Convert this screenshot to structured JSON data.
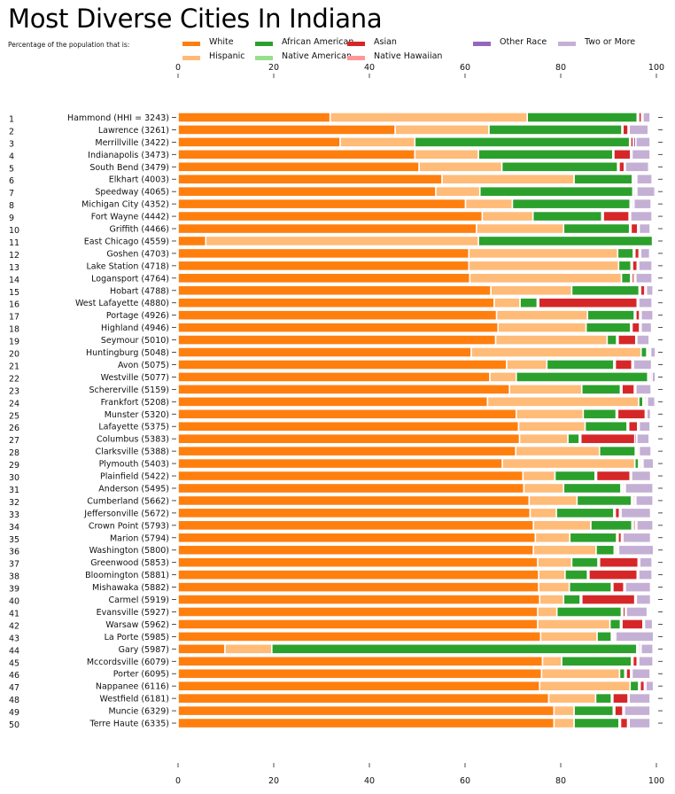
{
  "chart_data": {
    "type": "bar",
    "orientation": "horizontal-stacked",
    "title": "Most Diverse Cities In Indiana",
    "subtitle": "Percentage of the population that is:",
    "xlabel": "",
    "ylabel": "",
    "xlim": [
      0,
      100
    ],
    "xticks": [
      "0",
      "20",
      "40",
      "60",
      "80",
      "100"
    ],
    "xtick_values": [
      0,
      20,
      40,
      60,
      80,
      100
    ],
    "grid": false,
    "legend_position": "top",
    "series": [
      {
        "name": "White",
        "color": "#ff7f0e"
      },
      {
        "name": "Hispanic",
        "color": "#ffbb78"
      },
      {
        "name": "African American",
        "color": "#2ca02c"
      },
      {
        "name": "Native American",
        "color": "#98df8a"
      },
      {
        "name": "Asian",
        "color": "#d62728"
      },
      {
        "name": "Native Hawaiian",
        "color": "#ff9896"
      },
      {
        "name": "Other Race",
        "color": "#9467bd"
      },
      {
        "name": "Two or More",
        "color": "#c5b0d5"
      }
    ],
    "legend_layout": [
      {
        "series": 0,
        "col": 0,
        "row": 0
      },
      {
        "series": 1,
        "col": 0,
        "row": 1
      },
      {
        "series": 2,
        "col": 1,
        "row": 0
      },
      {
        "series": 3,
        "col": 1,
        "row": 1
      },
      {
        "series": 4,
        "col": 2,
        "row": 0
      },
      {
        "series": 5,
        "col": 2,
        "row": 1
      },
      {
        "series": 6,
        "col": 3,
        "row": 0
      },
      {
        "series": 7,
        "col": 4,
        "row": 0
      }
    ],
    "categories": [
      "Hammond (HHI = 3243)",
      "Lawrence (3261)",
      "Merrillville (3422)",
      "Indianapolis (3473)",
      "South Bend (3479)",
      "Elkhart (4003)",
      "Speedway (4065)",
      "Michigan City (4352)",
      "Fort Wayne (4442)",
      "Griffith (4466)",
      "East Chicago (4559)",
      "Goshen (4703)",
      "Lake Station (4718)",
      "Logansport (4764)",
      "Hobart (4788)",
      "West Lafayette (4880)",
      "Portage (4926)",
      "Highland (4946)",
      "Seymour (5010)",
      "Huntingburg (5048)",
      "Avon (5075)",
      "Westville (5077)",
      "Schererville (5159)",
      "Frankfort (5208)",
      "Munster (5320)",
      "Lafayette (5375)",
      "Columbus (5383)",
      "Clarksville (5388)",
      "Plymouth (5403)",
      "Plainfield (5422)",
      "Anderson (5495)",
      "Cumberland (5662)",
      "Jeffersonville (5672)",
      "Crown Point (5793)",
      "Marion (5794)",
      "Washington (5800)",
      "Greenwood (5853)",
      "Bloomington (5881)",
      "Mishawaka (5882)",
      "Carmel (5919)",
      "Evansville (5927)",
      "Warsaw (5962)",
      "La Porte (5985)",
      "Gary (5987)",
      "Mccordsville (6079)",
      "Porter (6095)",
      "Nappanee (6116)",
      "Westfield (6181)",
      "Muncie (6329)",
      "Terre Haute (6335)"
    ],
    "ranks": [
      "1",
      "2",
      "3",
      "4",
      "5",
      "6",
      "7",
      "8",
      "9",
      "10",
      "11",
      "12",
      "13",
      "14",
      "15",
      "16",
      "17",
      "18",
      "19",
      "20",
      "21",
      "22",
      "23",
      "24",
      "25",
      "26",
      "27",
      "28",
      "29",
      "30",
      "31",
      "32",
      "33",
      "34",
      "35",
      "36",
      "37",
      "38",
      "39",
      "40",
      "41",
      "42",
      "43",
      "44",
      "45",
      "46",
      "47",
      "48",
      "49",
      "50"
    ],
    "values": [
      [
        31.8,
        41.2,
        23.0,
        0.3,
        0.6,
        0.0,
        0.3,
        1.5
      ],
      [
        45.4,
        19.6,
        27.8,
        0.2,
        1.1,
        0.0,
        0.2,
        4.0
      ],
      [
        33.9,
        15.6,
        44.9,
        0.2,
        0.6,
        0.0,
        0.5,
        3.0
      ],
      [
        49.5,
        13.3,
        28.1,
        0.2,
        3.5,
        0.0,
        0.3,
        3.8
      ],
      [
        50.4,
        17.3,
        24.2,
        0.3,
        1.1,
        0.0,
        0.2,
        4.9
      ],
      [
        55.2,
        27.6,
        12.2,
        0.3,
        0.3,
        0.0,
        0.3,
        3.2
      ],
      [
        53.9,
        9.2,
        32.0,
        0.2,
        0.3,
        0.0,
        0.3,
        3.8
      ],
      [
        60.1,
        9.8,
        24.6,
        0.3,
        0.2,
        0.0,
        0.3,
        3.6
      ],
      [
        63.6,
        10.6,
        14.4,
        0.3,
        5.4,
        0.0,
        0.3,
        4.5
      ],
      [
        62.4,
        18.2,
        13.8,
        0.3,
        1.4,
        0.0,
        0.3,
        2.3
      ],
      [
        5.8,
        57.0,
        36.4,
        0.2,
        0.2,
        0.0,
        0.1,
        0.3
      ],
      [
        60.8,
        31.1,
        3.3,
        0.3,
        0.9,
        0.0,
        0.3,
        1.9
      ],
      [
        60.8,
        31.3,
        2.6,
        0.3,
        1.0,
        0.0,
        0.3,
        2.8
      ],
      [
        61.0,
        31.7,
        1.9,
        0.3,
        0.5,
        0.0,
        0.3,
        3.4
      ],
      [
        65.4,
        16.9,
        14.1,
        0.3,
        0.9,
        0.0,
        0.3,
        1.4
      ],
      [
        66.1,
        5.4,
        3.6,
        0.3,
        20.6,
        0.0,
        0.3,
        2.8
      ],
      [
        66.6,
        19.0,
        9.8,
        0.3,
        0.8,
        0.0,
        0.3,
        2.5
      ],
      [
        66.9,
        18.4,
        9.3,
        0.3,
        1.6,
        0.0,
        0.3,
        2.2
      ],
      [
        66.4,
        23.3,
        2.0,
        0.3,
        3.7,
        0.0,
        0.2,
        2.6
      ],
      [
        61.3,
        35.5,
        1.2,
        0.3,
        0.3,
        0.0,
        0.2,
        1.0
      ],
      [
        68.7,
        8.4,
        14.0,
        0.3,
        3.5,
        0.0,
        0.3,
        3.8
      ],
      [
        65.2,
        5.5,
        27.5,
        0.3,
        0.3,
        0.0,
        0.3,
        0.7
      ],
      [
        69.3,
        15.1,
        8.1,
        0.3,
        2.6,
        0.0,
        0.3,
        3.2
      ],
      [
        64.7,
        31.6,
        0.9,
        0.3,
        0.3,
        0.0,
        0.3,
        1.6
      ],
      [
        70.7,
        14.0,
        6.9,
        0.3,
        5.8,
        0.0,
        0.3,
        0.8
      ],
      [
        71.2,
        13.9,
        8.8,
        0.3,
        1.9,
        0.0,
        0.3,
        2.3
      ],
      [
        71.4,
        10.1,
        2.4,
        0.3,
        11.3,
        0.0,
        0.4,
        2.6
      ],
      [
        70.6,
        17.5,
        7.5,
        0.3,
        0.2,
        0.0,
        0.3,
        2.5
      ],
      [
        67.8,
        27.7,
        0.8,
        0.3,
        0.3,
        0.0,
        0.3,
        2.2
      ],
      [
        72.1,
        6.7,
        8.4,
        0.3,
        7.0,
        0.0,
        0.3,
        4.0
      ],
      [
        72.3,
        8.3,
        12.0,
        0.3,
        0.3,
        0.0,
        0.3,
        5.8
      ],
      [
        73.4,
        10.0,
        11.4,
        0.3,
        0.3,
        0.0,
        0.3,
        3.6
      ],
      [
        73.6,
        5.5,
        12.0,
        0.3,
        0.9,
        0.0,
        0.3,
        6.2
      ],
      [
        74.3,
        12.0,
        8.6,
        0.3,
        0.4,
        0.0,
        0.3,
        3.4
      ],
      [
        74.7,
        7.2,
        9.8,
        0.3,
        0.7,
        0.0,
        0.3,
        5.8
      ],
      [
        74.3,
        13.1,
        3.8,
        0.3,
        0.3,
        0.0,
        0.3,
        7.3
      ],
      [
        75.2,
        7.1,
        5.5,
        0.3,
        8.1,
        0.0,
        0.3,
        2.6
      ],
      [
        75.4,
        5.5,
        4.7,
        0.3,
        10.1,
        0.0,
        0.3,
        2.8
      ],
      [
        75.4,
        6.4,
        8.8,
        0.3,
        2.3,
        0.0,
        0.3,
        5.3
      ],
      [
        75.6,
        5.0,
        3.5,
        0.3,
        11.1,
        0.0,
        0.3,
        3.0
      ],
      [
        75.2,
        4.0,
        13.5,
        0.3,
        0.5,
        0.0,
        0.2,
        4.4
      ],
      [
        75.2,
        15.1,
        2.2,
        0.3,
        4.4,
        0.0,
        0.3,
        1.7
      ],
      [
        75.8,
        11.8,
        3.0,
        0.3,
        0.3,
        0.0,
        0.3,
        7.9
      ],
      [
        9.8,
        9.8,
        76.3,
        0.3,
        0.3,
        0.0,
        0.3,
        2.5
      ],
      [
        76.2,
        4.0,
        14.6,
        0.3,
        0.9,
        0.0,
        0.3,
        3.0
      ],
      [
        76.0,
        16.3,
        1.1,
        0.3,
        0.9,
        0.0,
        0.3,
        3.8
      ],
      [
        75.6,
        18.9,
        1.8,
        0.3,
        0.9,
        0.0,
        0.3,
        1.6
      ],
      [
        77.5,
        9.8,
        3.3,
        0.3,
        3.2,
        0.0,
        0.2,
        4.4
      ],
      [
        78.6,
        4.2,
        8.2,
        0.3,
        1.7,
        0.0,
        0.3,
        5.4
      ],
      [
        78.6,
        4.2,
        9.4,
        0.3,
        1.5,
        0.0,
        0.3,
        4.4
      ]
    ]
  }
}
